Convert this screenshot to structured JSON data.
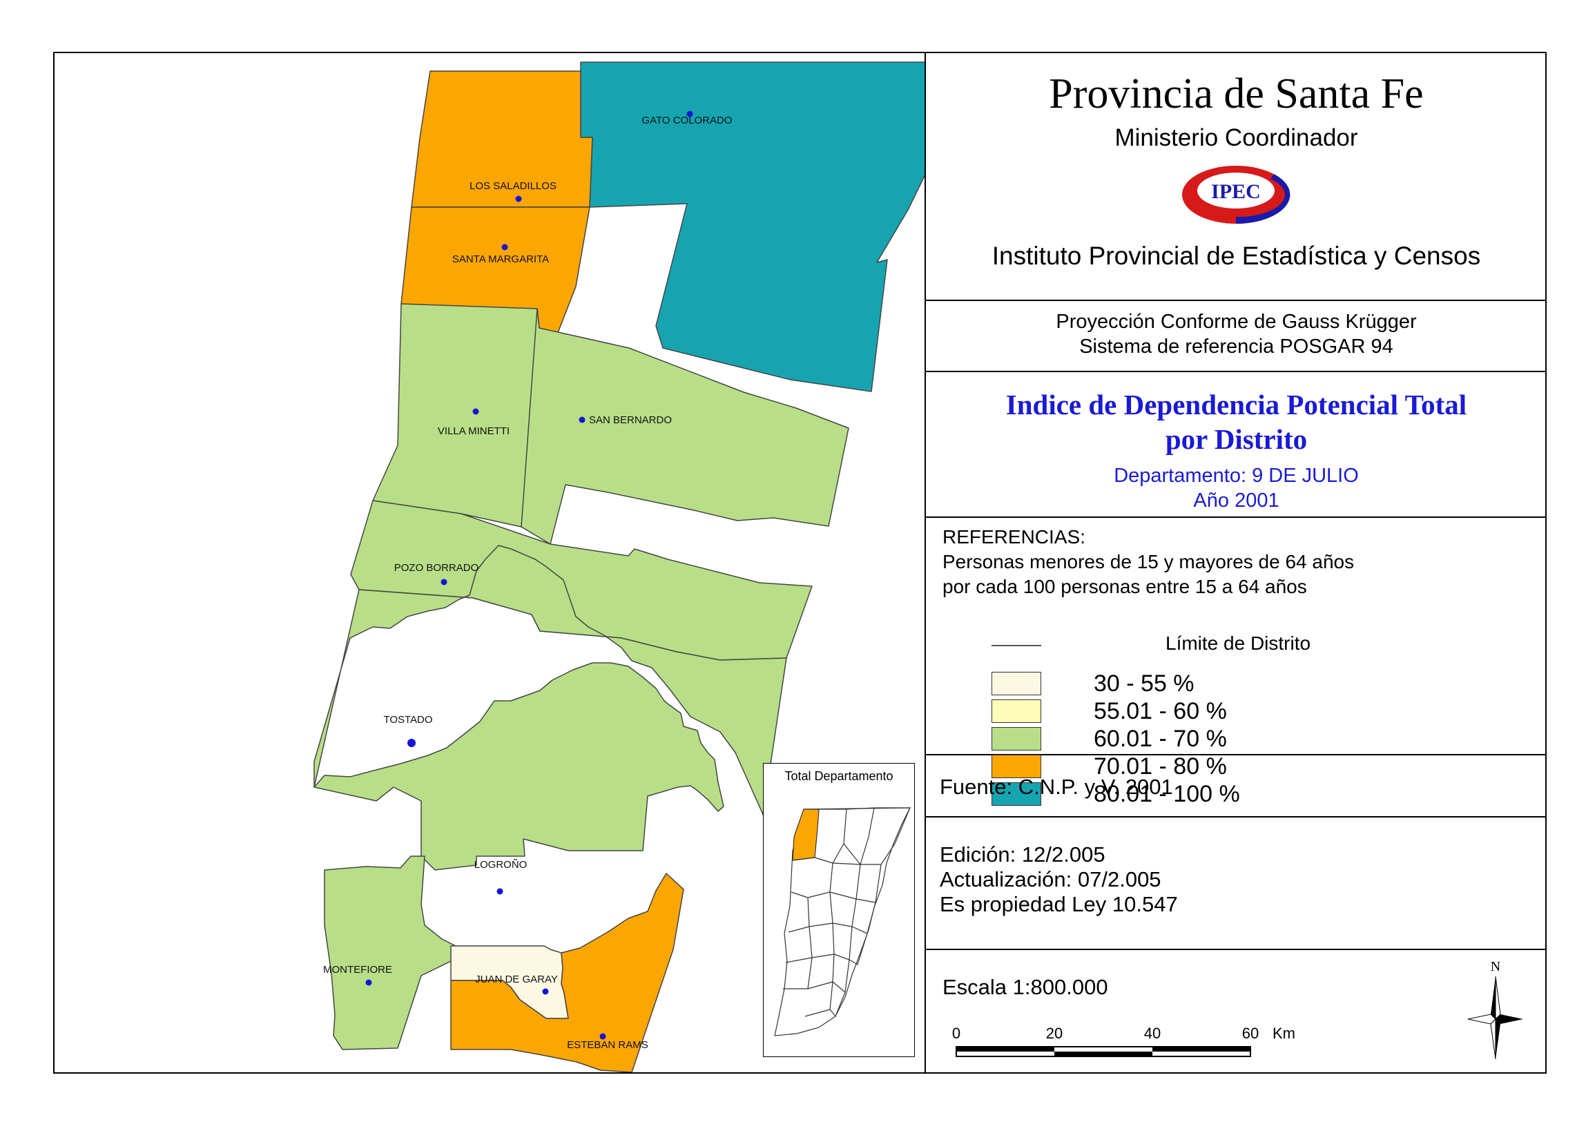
{
  "header": {
    "province": "Provincia de Santa Fe",
    "ministry": "Ministerio Coordinador",
    "logo_text": "IPEC",
    "institute": "Instituto Provincial de Estadística y Censos"
  },
  "projection": {
    "line1": "Proyección Conforme de Gauss Krügger",
    "line2": "Sistema de referencia POSGAR 94"
  },
  "map_title": {
    "line1": "Indice de Dependencia Potencial Total",
    "line2": "por Distrito",
    "department": "Departamento:  9 DE JULIO",
    "year": "Año 2001"
  },
  "references": {
    "heading": "REFERENCIAS:",
    "desc1": "Personas menores de 15 y mayores de 64 años",
    "desc2": "por cada 100 personas entre 15 a 64 años",
    "boundary_label": "Límite de Distrito",
    "classes": [
      {
        "label": "30 - 55 %",
        "color": "#fdf8e2"
      },
      {
        "label": "55.01 - 60 %",
        "color": "#fefcb8"
      },
      {
        "label": "60.01 - 70 %",
        "color": "#b8df88"
      },
      {
        "label": "70.01 - 80 %",
        "color": "#fca602"
      },
      {
        "label": "80.01 - 100 %",
        "color": "#16a5b0"
      }
    ]
  },
  "source": "Fuente:  C.N.P. y V. 2001",
  "edition": {
    "edicion": "Edición:  12/2.005",
    "actualizacion": "Actualización:  07/2.005",
    "propiedad": "Es propiedad Ley 10.547"
  },
  "scale": {
    "label": "Escala 1:800.000",
    "ticks": [
      "0",
      "20",
      "40",
      "60"
    ],
    "unit": "Km"
  },
  "north_label": "N",
  "inset_title": "Total Departamento",
  "districts": [
    {
      "name": "GATO COLORADO",
      "class": 4
    },
    {
      "name": "LOS SALADILLOS",
      "class": 3
    },
    {
      "name": "SANTA MARGARITA",
      "class": 3
    },
    {
      "name": "VILLA MINETTI",
      "class": 2
    },
    {
      "name": "SAN BERNARDO",
      "class": 2
    },
    {
      "name": "POZO BORRADO",
      "class": 2
    },
    {
      "name": "TOSTADO",
      "class": 2
    },
    {
      "name": "LOGROÑO",
      "class": 2
    },
    {
      "name": "MONTEFIORE",
      "class": 2
    },
    {
      "name": "JUAN DE GARAY",
      "class": 0
    },
    {
      "name": "ESTEBAN RAMS",
      "class": 3
    }
  ]
}
